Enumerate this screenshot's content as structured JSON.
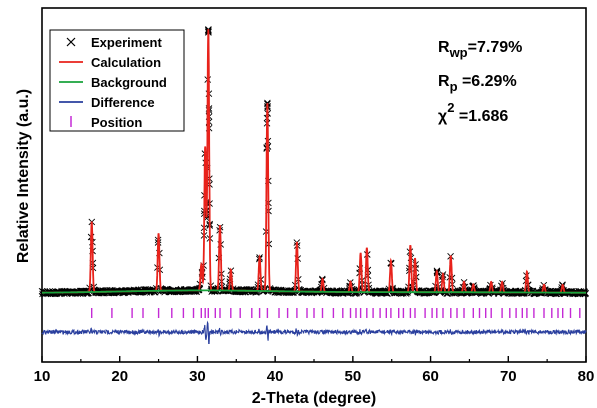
{
  "chart_data": {
    "type": "line",
    "title": "",
    "xlabel": "2-Theta (degree)",
    "ylabel": "Relative Intensity (a.u.)",
    "xlim": [
      10,
      80
    ],
    "x_ticks": [
      "10",
      "20",
      "30",
      "40",
      "50",
      "60",
      "70",
      "80"
    ],
    "y_ticks_labeled": false,
    "grid": false,
    "legend_placement": "top-left",
    "legend": [
      {
        "label": "Experiment",
        "marker": "cross",
        "color": "#000000"
      },
      {
        "label": "Calculation",
        "marker": "line",
        "color": "#e8221b"
      },
      {
        "label": "Background",
        "marker": "line",
        "color": "#18a33c"
      },
      {
        "label": "Difference",
        "marker": "line",
        "color": "#2a3f9e"
      },
      {
        "label": "Position",
        "marker": "bar",
        "color": "#c42ad6"
      }
    ],
    "fit_statistics": {
      "Rwp": {
        "symbol": "R",
        "subscript": "wp",
        "value": "=7.79%"
      },
      "Rp": {
        "symbol": "R",
        "subscript": "p",
        "value": " =6.29%"
      },
      "chi2": {
        "symbol": "χ",
        "superscript": "2",
        "value": " =1.686"
      }
    },
    "peaks": [
      {
        "two_theta": 16.4,
        "intensity": 0.27
      },
      {
        "two_theta": 25.0,
        "intensity": 0.22
      },
      {
        "two_theta": 30.5,
        "intensity": 0.1
      },
      {
        "two_theta": 31.0,
        "intensity": 0.55
      },
      {
        "two_theta": 31.4,
        "intensity": 1.0
      },
      {
        "two_theta": 32.9,
        "intensity": 0.25
      },
      {
        "two_theta": 34.3,
        "intensity": 0.08
      },
      {
        "two_theta": 38.0,
        "intensity": 0.13
      },
      {
        "two_theta": 39.0,
        "intensity": 0.72
      },
      {
        "two_theta": 42.8,
        "intensity": 0.19
      },
      {
        "two_theta": 46.1,
        "intensity": 0.05
      },
      {
        "two_theta": 49.7,
        "intensity": 0.04
      },
      {
        "two_theta": 51.0,
        "intensity": 0.15
      },
      {
        "two_theta": 51.8,
        "intensity": 0.17
      },
      {
        "two_theta": 54.9,
        "intensity": 0.12
      },
      {
        "two_theta": 57.4,
        "intensity": 0.18
      },
      {
        "two_theta": 58.0,
        "intensity": 0.13
      },
      {
        "two_theta": 60.8,
        "intensity": 0.08
      },
      {
        "two_theta": 61.6,
        "intensity": 0.07
      },
      {
        "two_theta": 62.6,
        "intensity": 0.14
      },
      {
        "two_theta": 64.3,
        "intensity": 0.04
      },
      {
        "two_theta": 65.5,
        "intensity": 0.03
      },
      {
        "two_theta": 67.8,
        "intensity": 0.04
      },
      {
        "two_theta": 69.2,
        "intensity": 0.04
      },
      {
        "two_theta": 72.4,
        "intensity": 0.08
      },
      {
        "two_theta": 74.6,
        "intensity": 0.03
      },
      {
        "two_theta": 77.0,
        "intensity": 0.03
      }
    ],
    "reflection_positions": [
      16.4,
      19.0,
      21.6,
      23.0,
      25.0,
      26.7,
      28.2,
      29.5,
      30.5,
      31.0,
      31.4,
      32.3,
      32.9,
      34.3,
      35.5,
      37.0,
      38.0,
      39.0,
      40.5,
      41.6,
      42.8,
      44.1,
      45.0,
      46.1,
      47.5,
      48.7,
      49.7,
      50.4,
      51.0,
      51.8,
      52.6,
      53.5,
      54.3,
      54.9,
      55.9,
      56.5,
      57.4,
      58.0,
      59.3,
      60.2,
      60.8,
      61.6,
      62.6,
      63.4,
      64.3,
      65.5,
      66.3,
      67.1,
      67.8,
      69.2,
      70.2,
      71.0,
      71.8,
      72.4,
      73.3,
      74.6,
      75.6,
      76.4,
      77.0,
      78.0,
      79.2
    ]
  }
}
